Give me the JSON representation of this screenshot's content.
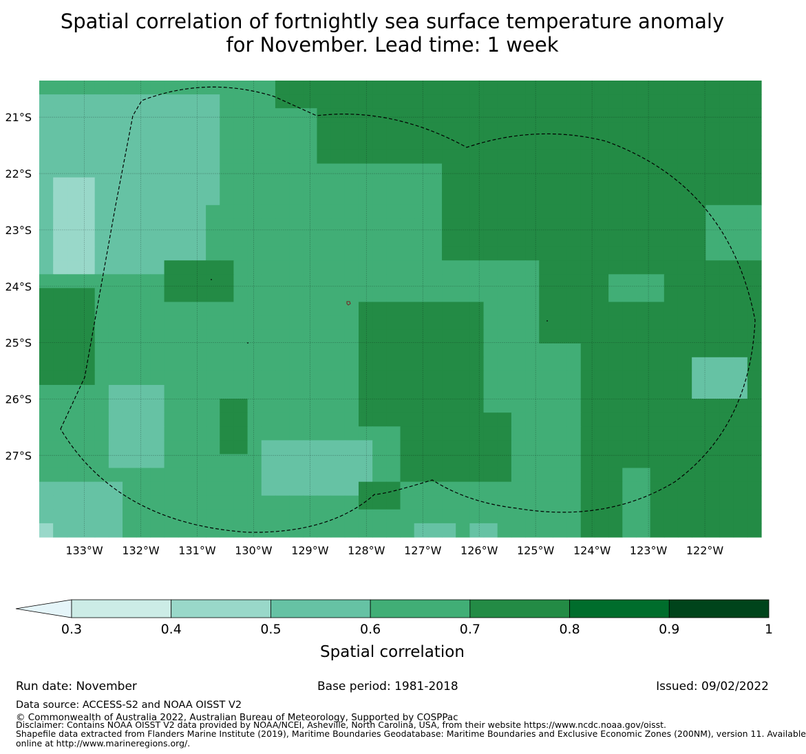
{
  "title": {
    "line1": "Spatial correlation of fortnightly sea surface temperature anomaly",
    "line2": "for November. Lead time: 1 week"
  },
  "map": {
    "lon_range": [
      -133.8,
      -121.0
    ],
    "lat_range": [
      -28.45,
      -20.35
    ],
    "lon_ticks": [
      -133,
      -132,
      -131,
      -130,
      -129,
      -128,
      -127,
      -126,
      -125,
      -124,
      -123,
      -122
    ],
    "lon_labels": [
      "133°W",
      "132°W",
      "131°W",
      "130°W",
      "129°W",
      "128°W",
      "127°W",
      "126°W",
      "125°W",
      "124°W",
      "123°W",
      "122°W"
    ],
    "lat_ticks": [
      -21,
      -22,
      -23,
      -24,
      -25,
      -26,
      -27
    ],
    "lat_labels": [
      "21°S",
      "22°S",
      "23°S",
      "24°S",
      "25°S",
      "26°S",
      "27°S"
    ],
    "grid": true,
    "field_description_levels": "class index per 0.25° cell, 1=0.3-0.4 ... 4=0.6-0.7, 5=0.7-0.8"
  },
  "colorbar": {
    "label": "Spatial correlation",
    "bounds": [
      0.3,
      0.4,
      0.5,
      0.6,
      0.7,
      0.8,
      0.9,
      1.0
    ],
    "tick_labels": [
      "0.3",
      "0.4",
      "0.5",
      "0.6",
      "0.7",
      "0.8",
      "0.9",
      "1"
    ],
    "colors": [
      "#ccece6",
      "#99d8c9",
      "#66c2a4",
      "#41ae76",
      "#238b45",
      "#006d2c",
      "#00441b"
    ],
    "under_color": "#e5f5f9",
    "extend": "min"
  },
  "footer": {
    "run_date": "Run date: November",
    "base_period": "Base period: 1981-2018",
    "issued": "Issued: 09/02/2022",
    "data_source": "Data source: ACCESS-S2 and NOAA OISST V2",
    "copyright": "© Commonwealth of Australia 2022, Australian Bureau of Meteorology, Supported by COSPPac",
    "disclaimer": "Disclaimer: Contains NOAA OISST V2 data provided by NOAA/NCEI, Asheville, North Carolina, USA, from their website https://www.ncdc.noaa.gov/oisst.",
    "shapefile_line1": "Shapefile data extracted from Flanders Marine Institute (2019), Maritime Boundaries Geodatabase: Maritime Boundaries and Exclusive Economic Zones (200NM), version 11. Available",
    "shapefile_line2": "online at http://www.marineregions.org/."
  }
}
